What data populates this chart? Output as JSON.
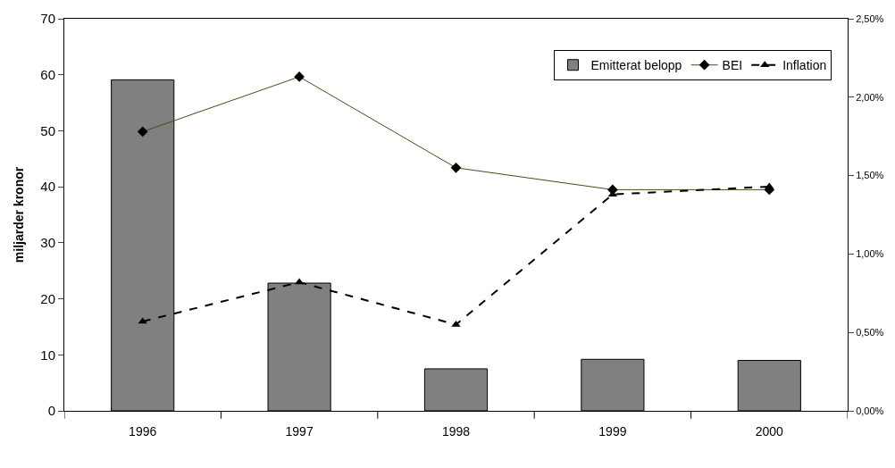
{
  "chart_data": {
    "type": "bar",
    "ylabel": "miljarder kronor",
    "categories": [
      "1996",
      "1997",
      "1998",
      "1999",
      "2000"
    ],
    "series": [
      {
        "name": "Emitterat belopp",
        "color": "#808080",
        "values": [
          59.1,
          22.8,
          7.5,
          9.2,
          9.0
        ]
      },
      {
        "name": "BEI",
        "type": "line",
        "axis": "y2",
        "color": "#4d4a1a",
        "marker": "diamond",
        "line_style": "solid",
        "values": [
          1.78,
          2.13,
          1.55,
          1.41,
          1.41
        ]
      },
      {
        "name": "Inflation",
        "type": "line",
        "axis": "y2",
        "color": "#000000",
        "marker": "triangle",
        "line_style": "dashed",
        "values": [
          0.57,
          0.82,
          0.55,
          1.38,
          1.43
        ]
      }
    ],
    "ylim": [
      0,
      70
    ],
    "yticks": [
      0,
      10,
      20,
      30,
      40,
      50,
      60,
      70
    ],
    "y2lim": [
      0,
      2.5
    ],
    "y2ticks": [
      {
        "value": 0,
        "label": "0,00%"
      },
      {
        "value": 0.5,
        "label": "0,50%"
      },
      {
        "value": 1,
        "label": "1,00%"
      },
      {
        "value": 1.5,
        "label": "1,50%"
      },
      {
        "value": 2,
        "label": "2,00%"
      },
      {
        "value": 2.5,
        "label": "2,50%"
      }
    ],
    "legend": "top right"
  }
}
